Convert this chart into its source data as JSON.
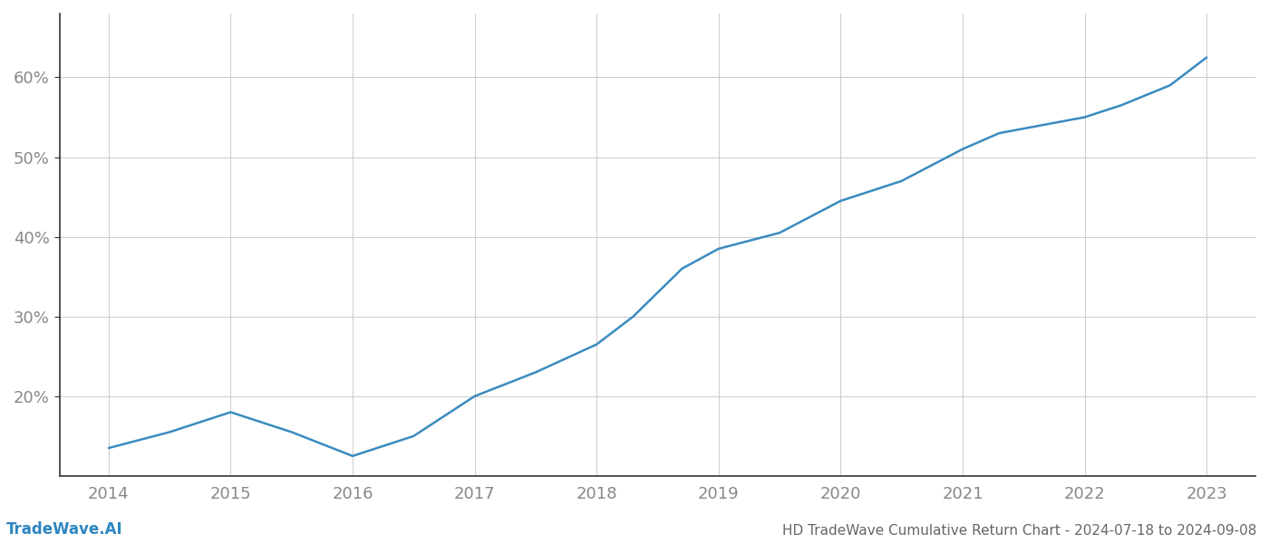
{
  "x": [
    2014,
    2014.5,
    2015,
    2015.5,
    2016,
    2016.5,
    2017,
    2017.5,
    2018,
    2018.3,
    2018.7,
    2019,
    2019.5,
    2020,
    2020.5,
    2021,
    2021.3,
    2022,
    2022.3,
    2022.7,
    2023
  ],
  "y": [
    13.5,
    15.5,
    18.0,
    15.5,
    12.5,
    15.0,
    20.0,
    23.0,
    26.5,
    30.0,
    36.0,
    38.5,
    40.5,
    44.5,
    47.0,
    51.0,
    53.0,
    55.0,
    56.5,
    59.0,
    62.5
  ],
  "line_color": "#3a8bbf",
  "line_width": 1.8,
  "title": "HD TradeWave Cumulative Return Chart - 2024-07-18 to 2024-09-08",
  "watermark": "TradeWave.AI",
  "xlabel": "",
  "ylabel": "",
  "xlim": [
    2013.6,
    2023.4
  ],
  "ylim": [
    10,
    68
  ],
  "yticks": [
    20,
    30,
    40,
    50,
    60
  ],
  "ytick_labels": [
    "20%",
    "30%",
    "40%",
    "50%",
    "60%"
  ],
  "xticks": [
    2014,
    2015,
    2016,
    2017,
    2018,
    2019,
    2020,
    2021,
    2022,
    2023
  ],
  "bg_color": "#ffffff",
  "grid_color": "#cccccc",
  "spine_color": "#333333",
  "tick_color": "#888888",
  "title_color": "#666666",
  "watermark_color": "#2e86c1",
  "title_fontsize": 11,
  "tick_fontsize": 13,
  "watermark_fontsize": 12
}
